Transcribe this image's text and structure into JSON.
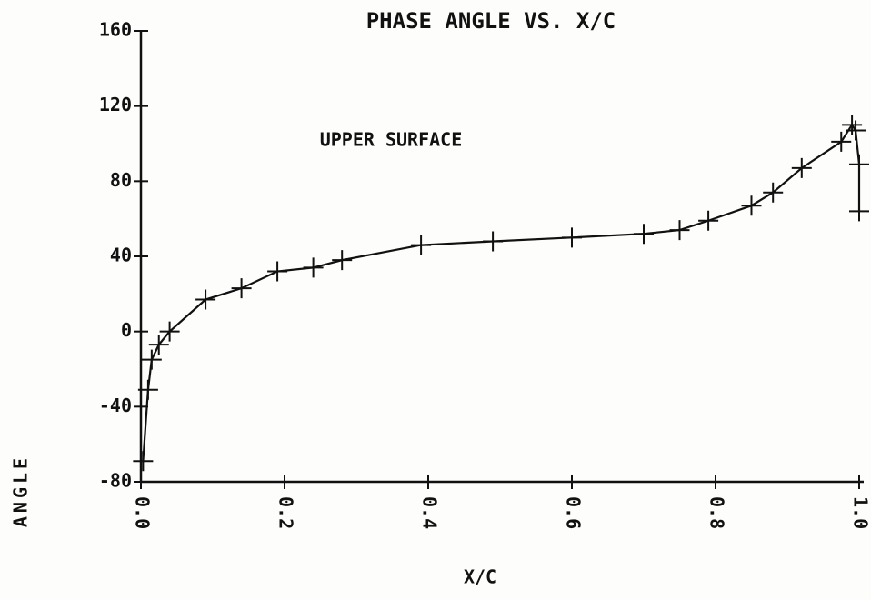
{
  "chart_data": {
    "type": "scatter",
    "title": "PHASE ANGLE VS. X/C",
    "annotation": "UPPER SURFACE",
    "xlabel": "X/C",
    "ylabel": "ANGLE",
    "color": "#111111",
    "marker": "+",
    "connect": true,
    "xlim": [
      0,
      1
    ],
    "ylim": [
      -80,
      160
    ],
    "xticks": [
      {
        "value": 0,
        "label": "0.0"
      },
      0.2,
      0.4,
      0.6,
      0.8,
      {
        "value": 1,
        "label": "1.0"
      }
    ],
    "yticks": [
      -80,
      -40,
      0,
      40,
      80,
      120,
      160
    ],
    "x": [
      0.003,
      0.01,
      0.015,
      0.025,
      0.04,
      0.09,
      0.14,
      0.19,
      0.24,
      0.28,
      0.39,
      0.49,
      0.6,
      0.7,
      0.75,
      0.79,
      0.85,
      0.88,
      0.92,
      0.975,
      0.99,
      0.995,
      1.0,
      1.0
    ],
    "values": [
      -69,
      -31,
      -15,
      -7,
      0,
      17,
      23,
      32,
      34,
      38,
      46,
      48,
      50,
      52,
      54,
      59,
      67,
      74,
      87,
      101,
      110,
      107,
      89,
      64
    ]
  }
}
